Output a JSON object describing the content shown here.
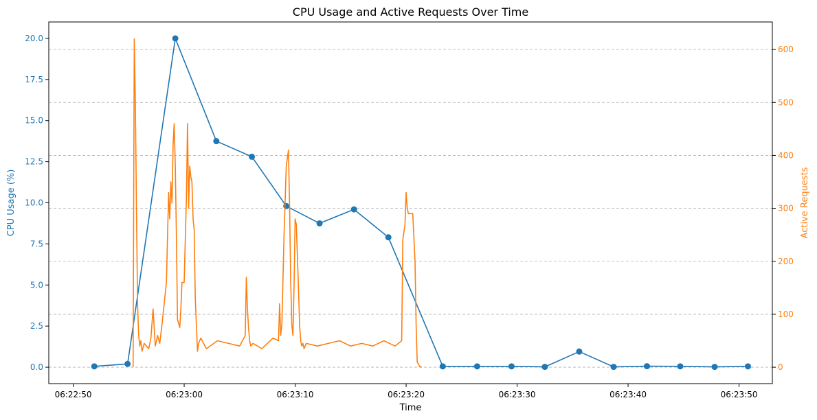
{
  "chart_data": {
    "type": "line",
    "title": "CPU Usage and Active Requests Over Time",
    "xlabel": "Time",
    "x_tick_labels": [
      "06:22:50",
      "06:23:00",
      "06:23:10",
      "06:23:20",
      "06:23:30",
      "06:23:40",
      "06:23:50"
    ],
    "x_tick_seconds": [
      -10,
      0,
      10,
      20,
      30,
      40,
      50
    ],
    "x_range_seconds": [
      -12.2,
      53
    ],
    "y_left": {
      "label": "CPU Usage (%)",
      "color": "#1f77b4",
      "ticks": [
        "0.0",
        "2.5",
        "5.0",
        "7.5",
        "10.0",
        "12.5",
        "15.0",
        "17.5",
        "20.0"
      ],
      "tick_values": [
        0,
        2.5,
        5,
        7.5,
        10,
        12.5,
        15,
        17.5,
        20
      ],
      "range": [
        -1.0,
        21.0
      ]
    },
    "y_right": {
      "label": "Active Requests",
      "color": "#ff7f0e",
      "ticks": [
        "0",
        "100",
        "200",
        "300",
        "400",
        "500",
        "600"
      ],
      "tick_values": [
        0,
        100,
        200,
        300,
        400,
        500,
        600
      ],
      "range": [
        -31,
        652
      ]
    },
    "grid": "horizontal dashed at right-axis ticks",
    "series": [
      {
        "axis": "left",
        "marker": "circle",
        "color": "#1f77b4",
        "x": [
          -8.1,
          -5.1,
          -0.8,
          2.9,
          6.1,
          9.2,
          12.2,
          15.3,
          18.4,
          23.3,
          26.4,
          29.5,
          32.5,
          35.6,
          38.7,
          41.7,
          44.7,
          47.8,
          50.8
        ],
        "y": [
          0.05,
          0.2,
          20.0,
          13.75,
          12.8,
          9.8,
          8.75,
          9.6,
          7.9,
          0.05,
          0.05,
          0.05,
          0.02,
          0.95,
          0.02,
          0.06,
          0.05,
          0.02,
          0.05
        ]
      },
      {
        "axis": "right",
        "marker": "none",
        "color": "#ff7f0e",
        "x": [
          -4.6,
          -4.5,
          -4.45,
          -4.4,
          -4.3,
          -4.2,
          -4.1,
          -4.0,
          -3.9,
          -3.8,
          -3.6,
          -3.2,
          -3.0,
          -2.8,
          -2.6,
          -2.5,
          -2.4,
          -2.2,
          -2.0,
          -1.6,
          -1.4,
          -1.3,
          -1.2,
          -1.1,
          -1.0,
          -0.9,
          -0.8,
          -0.7,
          -0.6,
          -0.4,
          -0.3,
          -0.2,
          0.0,
          0.2,
          0.3,
          0.4,
          0.5,
          0.6,
          0.7,
          0.8,
          0.9,
          1.0,
          1.1,
          1.2,
          1.3,
          1.5,
          2.0,
          3.0,
          4.0,
          5.0,
          5.5,
          5.6,
          5.7,
          5.8,
          5.9,
          6.0,
          6.2,
          7.0,
          8.0,
          8.5,
          8.6,
          8.7,
          8.8,
          9.0,
          9.2,
          9.4,
          9.5,
          9.6,
          9.7,
          9.8,
          9.9,
          10.0,
          10.1,
          10.3,
          10.4,
          10.5,
          10.6,
          10.7,
          10.8,
          11.0,
          12.0,
          13.0,
          14.0,
          15.0,
          16.0,
          17.0,
          18.0,
          19.0,
          19.6,
          19.7,
          19.9,
          20.0,
          20.1,
          20.2,
          20.3,
          20.6,
          20.8,
          20.9,
          21.0,
          21.2,
          21.4
        ],
        "y": [
          0,
          620,
          560,
          500,
          300,
          120,
          60,
          40,
          50,
          30,
          45,
          35,
          55,
          110,
          40,
          50,
          60,
          45,
          80,
          160,
          330,
          280,
          350,
          310,
          420,
          460,
          380,
          250,
          90,
          75,
          110,
          160,
          160,
          320,
          460,
          300,
          380,
          360,
          350,
          280,
          260,
          130,
          80,
          30,
          45,
          55,
          35,
          50,
          45,
          40,
          60,
          170,
          110,
          75,
          50,
          40,
          45,
          35,
          55,
          50,
          120,
          60,
          80,
          250,
          380,
          410,
          300,
          160,
          80,
          60,
          150,
          280,
          270,
          150,
          80,
          50,
          40,
          45,
          35,
          45,
          40,
          45,
          50,
          40,
          45,
          40,
          50,
          40,
          50,
          240,
          270,
          330,
          300,
          290,
          290,
          290,
          200,
          80,
          10,
          2,
          0
        ]
      }
    ]
  }
}
